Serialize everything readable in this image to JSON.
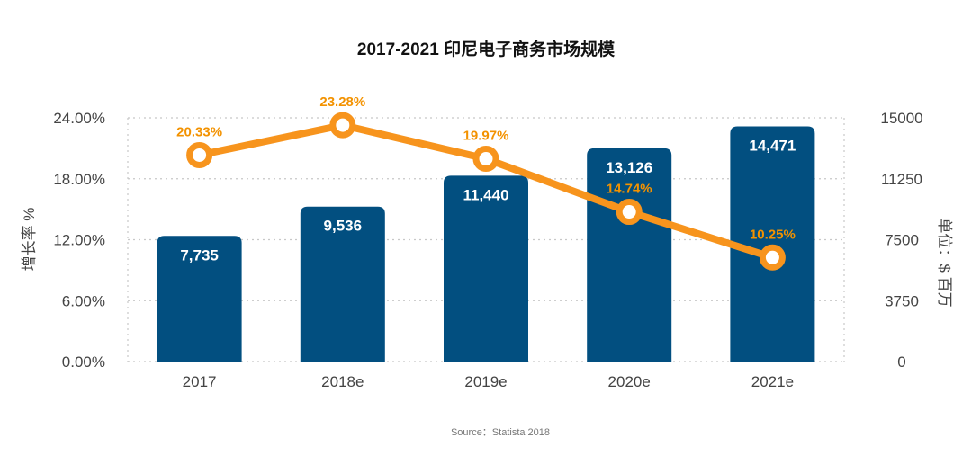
{
  "chart_data": {
    "type": "bar",
    "title": "2017-2021 印尼电子商务市场规模",
    "categories": [
      "2017",
      "2018e",
      "2019e",
      "2020e",
      "2021e"
    ],
    "series": [
      {
        "type": "bar",
        "axis": "right",
        "values": [
          7735,
          9536,
          11440,
          13126,
          14471
        ],
        "labels": [
          "7,735",
          "9,536",
          "11,440",
          "13,126",
          "14,471"
        ]
      },
      {
        "type": "line",
        "axis": "left",
        "values": [
          20.33,
          23.28,
          19.97,
          14.74,
          10.25
        ],
        "labels": [
          "20.33%",
          "23.28%",
          "19.97%",
          "14.74%",
          "10.25%"
        ]
      }
    ],
    "y_left": {
      "label": "增长率 %",
      "ylim": [
        0,
        24
      ],
      "ticks": [
        "24.00%",
        "18.00%",
        "12.00%",
        "6.00%",
        "0.00%"
      ]
    },
    "y_right": {
      "label": "单位：$ 百万",
      "ylim": [
        0,
        15000
      ],
      "ticks": [
        "15000",
        "11250",
        "7500",
        "3750",
        "0"
      ]
    },
    "grid": true,
    "colors": {
      "bar": "#024f80",
      "line": "#f7941d",
      "label": "#f39200"
    },
    "source": "Source：Statista 2018"
  }
}
